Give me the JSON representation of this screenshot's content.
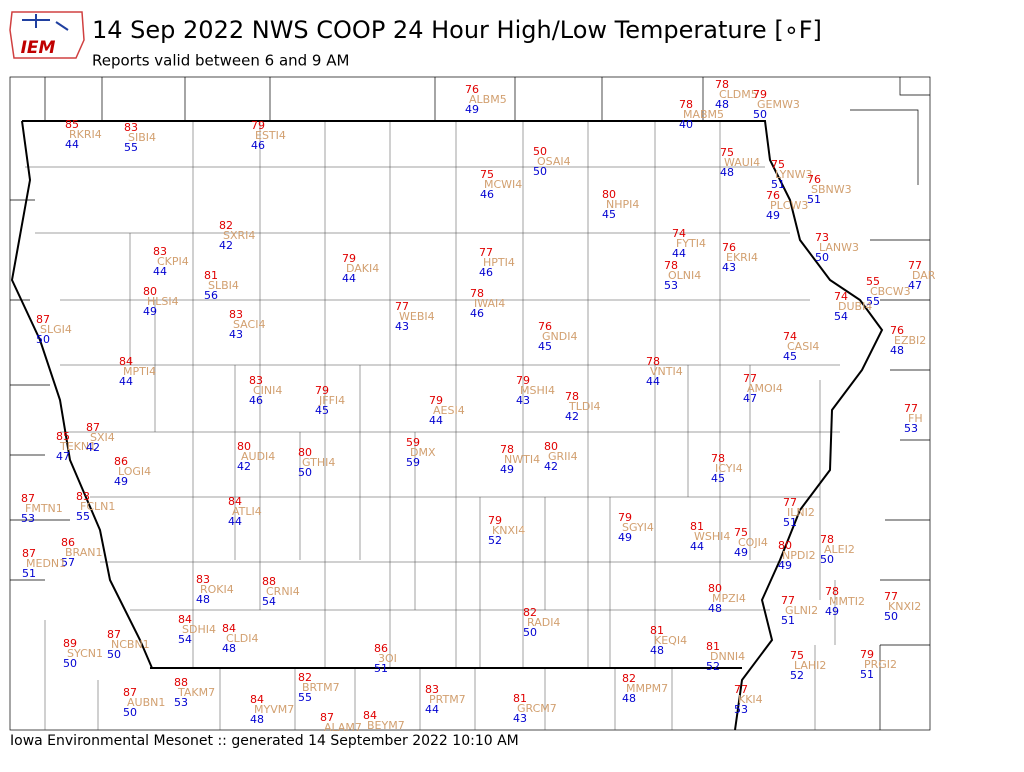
{
  "header": {
    "logo": "IEM",
    "title": "14 Sep 2022 NWS COOP 24 Hour High/Low Temperature [∘F]",
    "subtitle": "Reports valid between 6 and 9 AM"
  },
  "stations": [
    {
      "name": "ALBM5",
      "high": 76,
      "low": 49
    },
    {
      "name": "CLDM5",
      "high": 78,
      "low": 48
    },
    {
      "name": "GEMW3",
      "high": 79,
      "low": 50
    },
    {
      "name": "MABM5",
      "high": 78,
      "low": 40
    },
    {
      "name": "RKRI4",
      "high": 85,
      "low": 44
    },
    {
      "name": "SIBI4",
      "high": 83,
      "low": 55
    },
    {
      "name": "ESTI4",
      "high": 79,
      "low": 46
    },
    {
      "name": "OSAI4",
      "high": 50,
      "low": 50
    },
    {
      "name": "WAUI4",
      "high": 75,
      "low": 48
    },
    {
      "name": "LYNW3",
      "high": 75,
      "low": 51
    },
    {
      "name": "SBNW3",
      "high": 76,
      "low": 51
    },
    {
      "name": "PLCW3",
      "high": 76,
      "low": 49
    },
    {
      "name": "MCWI4",
      "high": 75,
      "low": 46
    },
    {
      "name": "NHPI4",
      "high": 80,
      "low": 45
    },
    {
      "name": "SXRI4",
      "high": 82,
      "low": 42
    },
    {
      "name": "FYTI4",
      "high": 74,
      "low": 44
    },
    {
      "name": "LANW3",
      "high": 73,
      "low": 50
    },
    {
      "name": "EKRI4",
      "high": 76,
      "low": 43
    },
    {
      "name": "CKPI4",
      "high": 83,
      "low": 44
    },
    {
      "name": "DAKI4",
      "high": 79,
      "low": 44
    },
    {
      "name": "HPTI4",
      "high": 77,
      "low": 46
    },
    {
      "name": "OLNI4",
      "high": 78,
      "low": 53
    },
    {
      "name": "DAR",
      "high": 77,
      "low": 47
    },
    {
      "name": "SLBI4",
      "high": 81,
      "low": 56
    },
    {
      "name": "CBCW3",
      "high": 55,
      "low": 55
    },
    {
      "name": "HLSI4",
      "high": 80,
      "low": 49
    },
    {
      "name": "IWAI4",
      "high": 78,
      "low": 46
    },
    {
      "name": "DUBI4",
      "high": 74,
      "low": 54
    },
    {
      "name": "SACI4",
      "high": 83,
      "low": 43
    },
    {
      "name": "WEBI4",
      "high": 77,
      "low": 43
    },
    {
      "name": "SLGI4",
      "high": 87,
      "low": 50
    },
    {
      "name": "GNDI4",
      "high": 76,
      "low": 45
    },
    {
      "name": "EZBI2",
      "high": 76,
      "low": 48
    },
    {
      "name": "CASI4",
      "high": 74,
      "low": 45
    },
    {
      "name": "MPTI4",
      "high": 84,
      "low": 44
    },
    {
      "name": "VNTI4",
      "high": 78,
      "low": 44
    },
    {
      "name": "CINI4",
      "high": 83,
      "low": 46
    },
    {
      "name": "JFFI4",
      "high": 79,
      "low": 45
    },
    {
      "name": "MSHI4",
      "high": 79,
      "low": 43
    },
    {
      "name": "AMOI4",
      "high": 77,
      "low": 47
    },
    {
      "name": "AESI4",
      "high": 79,
      "low": 44
    },
    {
      "name": "TLDI4",
      "high": 78,
      "low": 42
    },
    {
      "name": "FH",
      "high": 77,
      "low": 53
    },
    {
      "name": "TEKN1",
      "high": 85,
      "low": 47
    },
    {
      "name": "SXI4",
      "high": 87,
      "low": 42
    },
    {
      "name": "DMX",
      "high": 59,
      "low": 59
    },
    {
      "name": "AUDI4",
      "high": 80,
      "low": 42
    },
    {
      "name": "GTHI4",
      "high": 80,
      "low": 50
    },
    {
      "name": "GRII4",
      "high": 80,
      "low": 42
    },
    {
      "name": "NWTI4",
      "high": 78,
      "low": 49
    },
    {
      "name": "LOGI4",
      "high": 86,
      "low": 49
    },
    {
      "name": "ICYI4",
      "high": 78,
      "low": 45
    },
    {
      "name": "FMTN1",
      "high": 87,
      "low": 53
    },
    {
      "name": "FCLN1",
      "high": 83,
      "low": 55
    },
    {
      "name": "ATLI4",
      "high": 84,
      "low": 44
    },
    {
      "name": "ILNI2",
      "high": 77,
      "low": 51
    },
    {
      "name": "KNXI4",
      "high": 79,
      "low": 52
    },
    {
      "name": "SGYI4",
      "high": 79,
      "low": 49
    },
    {
      "name": "WSHI4",
      "high": 81,
      "low": 44
    },
    {
      "name": "COJI4",
      "high": 75,
      "low": 49
    },
    {
      "name": "ALEI2",
      "high": 78,
      "low": 50
    },
    {
      "name": "BRAN1",
      "high": 86,
      "low": 57
    },
    {
      "name": "MEDN1",
      "high": 87,
      "low": 51
    },
    {
      "name": "NPDI2",
      "high": 80,
      "low": 49
    },
    {
      "name": "ROKI4",
      "high": 83,
      "low": 48
    },
    {
      "name": "CRNI4",
      "high": 88,
      "low": 54
    },
    {
      "name": "MPZI4",
      "high": 80,
      "low": 48
    },
    {
      "name": "MMTI2",
      "high": 78,
      "low": 49
    },
    {
      "name": "GLNI2",
      "high": 77,
      "low": 51
    },
    {
      "name": "KNXI2",
      "high": 77,
      "low": 50
    },
    {
      "name": "SDHI4",
      "high": 84,
      "low": 54
    },
    {
      "name": "CLDI4",
      "high": 84,
      "low": 48
    },
    {
      "name": "RADI4",
      "high": 82,
      "low": 50
    },
    {
      "name": "KEQI4",
      "high": 81,
      "low": 48
    },
    {
      "name": "SYCN1",
      "high": 89,
      "low": 50
    },
    {
      "name": "NCBN1",
      "high": 87,
      "low": 50
    },
    {
      "name": "3OI",
      "high": 86,
      "low": 51
    },
    {
      "name": "DNNI4",
      "high": 81,
      "low": 52
    },
    {
      "name": "LAHI2",
      "high": 75,
      "low": 52
    },
    {
      "name": "PRGI2",
      "high": 79,
      "low": 51
    },
    {
      "name": "TAKM7",
      "high": 88,
      "low": 53
    },
    {
      "name": "BRTM7",
      "high": 82,
      "low": 55
    },
    {
      "name": "PRTM7",
      "high": 83,
      "low": 44
    },
    {
      "name": "MMPM7",
      "high": 82,
      "low": 48
    },
    {
      "name": "AUBN1",
      "high": 87,
      "low": 50
    },
    {
      "name": "MYVM7",
      "high": 84,
      "low": 48
    },
    {
      "name": "GRCM7",
      "high": 81,
      "low": 43
    },
    {
      "name": "KKI4",
      "high": 77,
      "low": 53
    },
    {
      "name": "ALAM7",
      "high": 87,
      "low": null
    },
    {
      "name": "BEYM7",
      "high": 84,
      "low": null
    }
  ],
  "footer": "Iowa Environmental Mesonet :: generated 14 September 2022 10:10 AM"
}
